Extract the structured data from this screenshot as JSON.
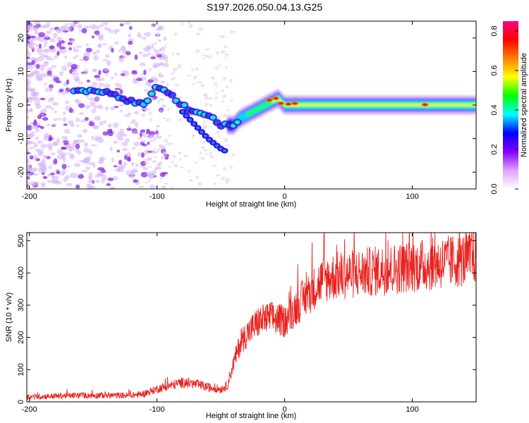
{
  "title": "S197.2026.050.04.13.G25",
  "chart_data": [
    {
      "type": "heatmap",
      "name": "spectrogram",
      "xlabel": "Height of straight line (km)",
      "ylabel": "Frequency (Hz)",
      "xlim": [
        -202,
        150
      ],
      "ylim": [
        -25,
        25
      ],
      "xticks": [
        -200,
        -100,
        0,
        100
      ],
      "xtick_labels": [
        "-200",
        "-100",
        "0",
        "100"
      ],
      "yticks": [
        -20,
        -10,
        0,
        10,
        20
      ],
      "ytick_labels": [
        "-20",
        "-10",
        "0",
        "10",
        "20"
      ],
      "colorbar": {
        "label": "Normalized spectral amplitude",
        "range": [
          0,
          0.85
        ],
        "ticks": [
          0.0,
          0.2,
          0.4,
          0.6,
          0.8
        ],
        "tick_labels": [
          "0.0",
          "0.2",
          "0.4",
          "0.6",
          "0.8"
        ],
        "colors": [
          "#ffffff",
          "#e0a0ff",
          "#8000ff",
          "#0000ff",
          "#00ffff",
          "#00ff00",
          "#ffff00",
          "#ff8000",
          "#ff0000",
          "#ff0080"
        ]
      },
      "ridge": {
        "x": [
          -160,
          -140,
          -120,
          -110,
          -100,
          -90,
          -80,
          -70,
          -60,
          -50,
          -45,
          -40,
          -35,
          -30,
          -20,
          -10,
          -5,
          0,
          10,
          20,
          40,
          80,
          120,
          150
        ],
        "y": [
          4,
          4,
          1,
          0,
          6,
          3,
          0,
          -2,
          -3,
          -6,
          -6,
          -6,
          -4,
          -3,
          -1,
          1,
          2,
          0,
          0,
          0,
          0,
          0,
          0,
          0
        ]
      },
      "branch": {
        "x": [
          -80,
          -70,
          -60,
          -50,
          -45
        ],
        "y": [
          -2,
          -6,
          -10,
          -13,
          -14
        ]
      }
    },
    {
      "type": "line",
      "name": "snr",
      "xlabel": "Height of straight line (km)",
      "ylabel": "SNR (10 * v/v)",
      "xlim": [
        -202,
        150
      ],
      "ylim": [
        0,
        525
      ],
      "xticks": [
        -200,
        -100,
        0,
        100
      ],
      "xtick_labels": [
        "-200",
        "-100",
        "0",
        "100"
      ],
      "yticks": [
        0,
        100,
        200,
        300,
        400,
        500
      ],
      "ytick_labels": [
        "0",
        "100",
        "200",
        "300",
        "400",
        "500"
      ],
      "color": "#e8221e",
      "series": [
        {
          "name": "SNR",
          "x": [
            -202,
            -180,
            -160,
            -140,
            -120,
            -110,
            -100,
            -90,
            -80,
            -70,
            -60,
            -50,
            -45,
            -40,
            -35,
            -30,
            -25,
            -20,
            -10,
            0,
            10,
            20,
            30,
            40,
            60,
            80,
            100,
            120,
            140,
            150
          ],
          "y": [
            15,
            18,
            20,
            20,
            20,
            25,
            40,
            50,
            60,
            55,
            45,
            40,
            50,
            120,
            180,
            210,
            230,
            250,
            260,
            250,
            300,
            340,
            380,
            390,
            400,
            410,
            420,
            430,
            440,
            450
          ]
        }
      ]
    }
  ]
}
